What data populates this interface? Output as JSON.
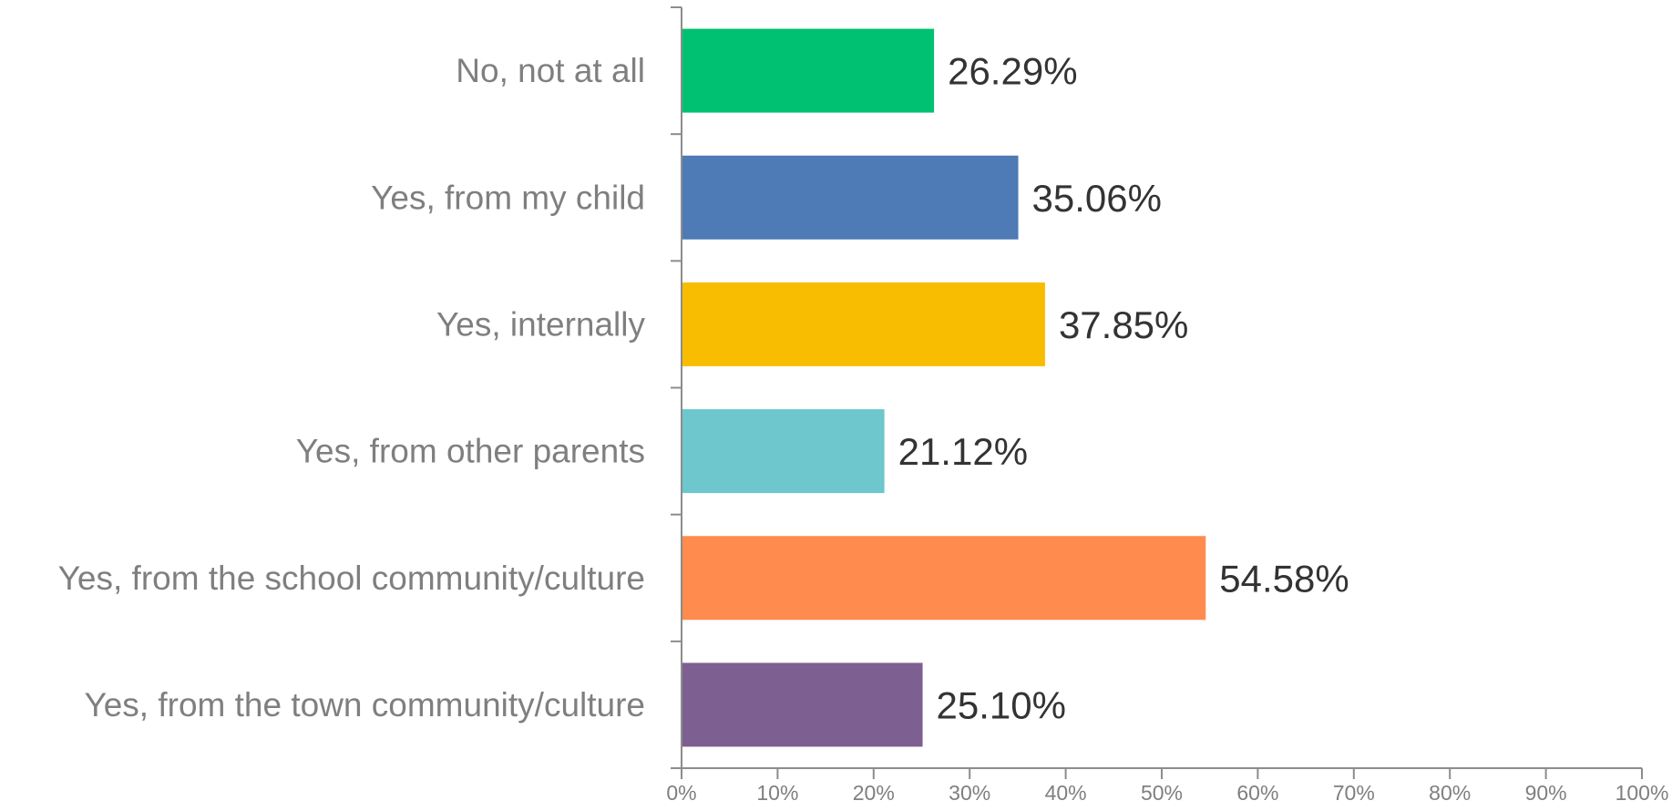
{
  "chart_data": {
    "type": "bar",
    "orientation": "horizontal",
    "categories": [
      "No, not at all",
      "Yes, from my child",
      "Yes, internally",
      "Yes, from other parents",
      "Yes, from the school community/culture",
      "Yes, from the town community/culture"
    ],
    "values": [
      26.29,
      35.06,
      37.85,
      21.12,
      54.58,
      25.1
    ],
    "value_labels": [
      "26.29%",
      "35.06%",
      "37.85%",
      "21.12%",
      "54.58%",
      "25.10%"
    ],
    "colors": [
      "#00c171",
      "#4e7ab5",
      "#f8bd00",
      "#6dc7cc",
      "#ff8b4f",
      "#7d5f91"
    ],
    "xlim": [
      0,
      100
    ],
    "x_ticks": [
      0,
      10,
      20,
      30,
      40,
      50,
      60,
      70,
      80,
      90,
      100
    ],
    "x_tick_labels": [
      "0%",
      "10%",
      "20%",
      "30%",
      "40%",
      "50%",
      "60%",
      "70%",
      "80%",
      "90%",
      "100%"
    ],
    "title": "",
    "xlabel": "",
    "ylabel": "",
    "grid": false,
    "legend": "none"
  }
}
